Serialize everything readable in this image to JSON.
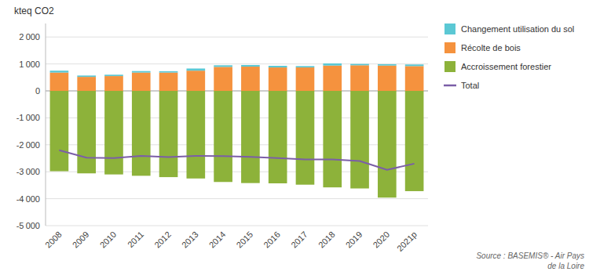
{
  "chart_data": {
    "type": "bar",
    "stacked": true,
    "y_label": "kteq CO2",
    "annotations": [
      "Source : BASEMIS® - Air Pays\nde la Loire"
    ],
    "categories": [
      "2008",
      "2009",
      "2010",
      "2011",
      "2012",
      "2013",
      "2014",
      "2015",
      "2016",
      "2017",
      "2018",
      "2019",
      "2020",
      "2021p"
    ],
    "series": [
      {
        "name": "Changement utilisation du sol",
        "color": "#5bc8d4",
        "values": [
          70,
          50,
          50,
          55,
          50,
          80,
          60,
          60,
          60,
          50,
          80,
          50,
          50,
          60
        ]
      },
      {
        "name": "Récolte de bois",
        "color": "#f5923e",
        "values": [
          680,
          520,
          550,
          680,
          680,
          750,
          890,
          900,
          870,
          870,
          940,
          950,
          940,
          920
        ]
      },
      {
        "name": "Accroissement forestier",
        "color": "#8db23a",
        "values": [
          -2980,
          -3060,
          -3100,
          -3150,
          -3200,
          -3250,
          -3380,
          -3420,
          -3430,
          -3480,
          -3580,
          -3620,
          -3960,
          -3720
        ]
      },
      {
        "name": "Total",
        "type": "line",
        "color": "#7b5ea7",
        "values": [
          -2200,
          -2480,
          -2490,
          -2410,
          -2460,
          -2410,
          -2420,
          -2450,
          -2490,
          -2540,
          -2540,
          -2600,
          -2930,
          -2700
        ]
      }
    ],
    "ylim": [
      -5000,
      2500
    ],
    "yticks": [
      {
        "value": -5000,
        "label": "-5 000"
      },
      {
        "value": -4000,
        "label": "-4 000"
      },
      {
        "value": -3000,
        "label": "-3 000"
      },
      {
        "value": -2000,
        "label": "-2 000"
      },
      {
        "value": -1000,
        "label": "-1 000"
      },
      0,
      {
        "value": 1000,
        "label": "1 000"
      },
      {
        "value": 2000,
        "label": "2 000"
      }
    ],
    "grid": true,
    "legend": "right"
  }
}
